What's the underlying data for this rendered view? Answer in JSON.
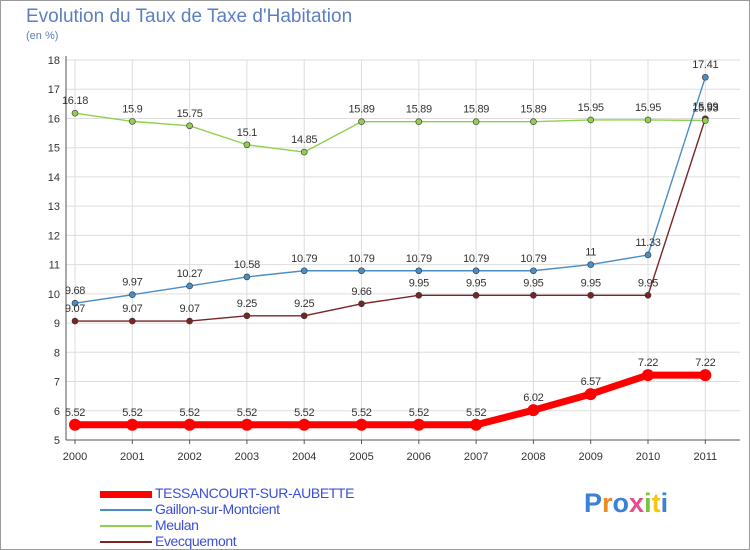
{
  "chart_data": {
    "type": "line",
    "title": "Evolution du Taux de Taxe d'Habitation",
    "subtitle": "(en %)",
    "x": [
      "2000",
      "2001",
      "2002",
      "2003",
      "2004",
      "2005",
      "2006",
      "2007",
      "2008",
      "2009",
      "2010",
      "2011"
    ],
    "ylim": [
      5,
      18
    ],
    "yticks": [
      "5",
      "6",
      "7",
      "8",
      "9",
      "10",
      "11",
      "12",
      "13",
      "14",
      "15",
      "16",
      "17",
      "18"
    ],
    "grid": true,
    "legend_position": "bottom-left",
    "series": [
      {
        "name": "TESSANCOURT-SUR-AUBETTE",
        "color": "#ff0000",
        "labels": [
          "5.52",
          "5.52",
          "5.52",
          "5.52",
          "5.52",
          "5.52",
          "5.52",
          "5.52",
          "6.02",
          "6.57",
          "7.22",
          "7.22"
        ],
        "values": [
          5.52,
          5.52,
          5.52,
          5.52,
          5.52,
          5.52,
          5.52,
          5.52,
          6.02,
          6.57,
          7.22,
          7.22
        ]
      },
      {
        "name": "Gaillon-sur-Montcient",
        "color": "#4a8ec8",
        "labels": [
          "9.68",
          "9.97",
          "10.27",
          "10.58",
          "10.79",
          "10.79",
          "10.79",
          "10.79",
          "10.79",
          "11",
          "11.33",
          "17.41"
        ],
        "values": [
          9.68,
          9.97,
          10.27,
          10.58,
          10.79,
          10.79,
          10.79,
          10.79,
          10.79,
          11,
          11.33,
          17.41
        ]
      },
      {
        "name": "Meulan",
        "color": "#8fd14f",
        "labels": [
          "16.18",
          "15.9",
          "15.75",
          "15.1",
          "14.85",
          "15.89",
          "15.89",
          "15.89",
          "15.89",
          "15.95",
          "15.95",
          "15.93"
        ],
        "values": [
          16.18,
          15.9,
          15.75,
          15.1,
          14.85,
          15.89,
          15.89,
          15.89,
          15.89,
          15.95,
          15.95,
          15.93
        ]
      },
      {
        "name": "Evecquemont",
        "color": "#7a2424",
        "labels": [
          "9.07",
          "9.07",
          "9.07",
          "9.25",
          "9.25",
          "9.66",
          "9.95",
          "9.95",
          "9.95",
          "9.95",
          "9.95",
          "15.99"
        ],
        "values": [
          9.07,
          9.07,
          9.07,
          9.25,
          9.25,
          9.66,
          9.95,
          9.95,
          9.95,
          9.95,
          9.95,
          15.99
        ]
      }
    ]
  },
  "branding": {
    "logo_letters": [
      "P",
      "r",
      "o",
      "x",
      "i",
      "t",
      "i"
    ],
    "logo_colors": [
      "#3b82d6",
      "#f08a24",
      "#3b82d6",
      "#e84c8b",
      "#7cc242",
      "#f5c518",
      "#3b82d6"
    ]
  }
}
